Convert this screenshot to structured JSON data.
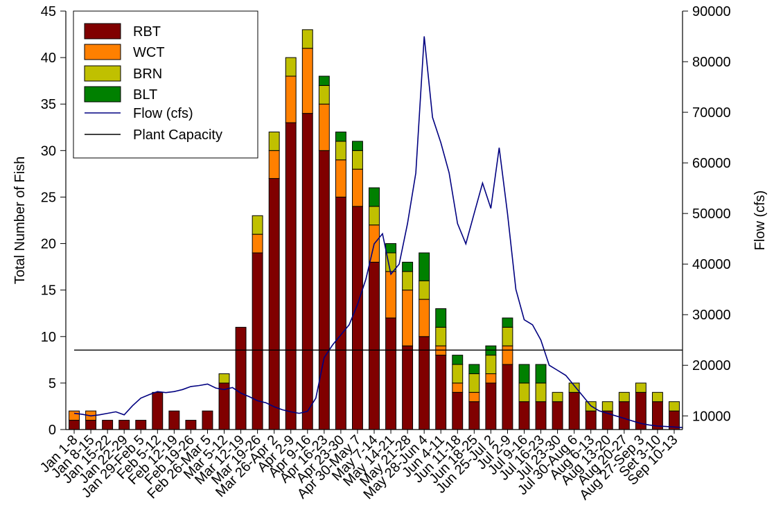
{
  "chart_data": {
    "type": "bar",
    "stacked": true,
    "categories": [
      "Jan 1-8",
      "Jan 8-15",
      "Jan 15-22",
      "Jan 22-29",
      "Jan 29-Feb 5",
      "Feb 5-12",
      "Feb 12-19",
      "Feb 19-26",
      "Feb 26-Mar 5",
      "Mar 5-12",
      "Mar 12-19",
      "Mar 19-26",
      "Mar 26-Apr 2",
      "Apr 2-9",
      "Apr 9-16",
      "Apr 16-23",
      "Apr 23-30",
      "Apr 30-May 7",
      "May 7-14",
      "May 14-21",
      "May 21-28",
      "May 28-Jun 4",
      "Jun 4-11",
      "Jun 11-18",
      "Jun 18-25",
      "Jun 25-Jul 2",
      "Jul 2-9",
      "Jul 9-16",
      "Jul 16-23",
      "Jul 23-30",
      "Jul 30-Aug 6",
      "Aug 6-13",
      "Aug 13-20",
      "Aug 20-27",
      "Aug 27-Sep 3",
      "Set 3-10",
      "Sep 10-13"
    ],
    "series": [
      {
        "name": "RBT",
        "color": "#800000",
        "values": [
          1,
          1,
          1,
          1,
          1,
          4,
          2,
          1,
          2,
          5,
          11,
          19,
          27,
          33,
          34,
          30,
          25,
          24,
          18,
          12,
          9,
          10,
          8,
          4,
          3,
          5,
          7,
          3,
          3,
          3,
          4,
          2,
          2,
          3,
          4,
          3,
          2
        ]
      },
      {
        "name": "WCT",
        "color": "#FF8000",
        "values": [
          1,
          1,
          0,
          0,
          0,
          0,
          0,
          0,
          0,
          0,
          0,
          2,
          3,
          5,
          7,
          5,
          4,
          4,
          4,
          5,
          6,
          4,
          1,
          1,
          1,
          1,
          2,
          0,
          0,
          0,
          0,
          0,
          0,
          0,
          0,
          0,
          0
        ]
      },
      {
        "name": "BRN",
        "color": "#C0C000",
        "values": [
          0,
          0,
          0,
          0,
          0,
          0,
          0,
          0,
          0,
          1,
          0,
          2,
          2,
          2,
          2,
          2,
          2,
          2,
          2,
          2,
          2,
          2,
          2,
          2,
          2,
          2,
          2,
          2,
          2,
          1,
          1,
          1,
          1,
          1,
          1,
          1,
          1
        ]
      },
      {
        "name": "BLT",
        "color": "#008000",
        "values": [
          0,
          0,
          0,
          0,
          0,
          0,
          0,
          0,
          0,
          0,
          0,
          0,
          0,
          0,
          0,
          1,
          1,
          1,
          2,
          1,
          1,
          3,
          2,
          1,
          1,
          1,
          1,
          2,
          2,
          0,
          0,
          0,
          0,
          0,
          0,
          0,
          0
        ]
      }
    ],
    "lines": [
      {
        "name": "Flow (cfs)",
        "color": "#000080",
        "axis": "right",
        "x": [
          0,
          0.5,
          1,
          1.5,
          2,
          2.5,
          3,
          3.5,
          4,
          4.5,
          5,
          5.5,
          6,
          6.5,
          7,
          7.5,
          8,
          8.5,
          9,
          9.5,
          10,
          10.5,
          11,
          11.5,
          12,
          12.5,
          13,
          13.5,
          14,
          14.5,
          15,
          15.5,
          16,
          16.5,
          17,
          17.5,
          18,
          18.5,
          19,
          19.5,
          20,
          20.5,
          21,
          21.5,
          22,
          22.5,
          23,
          23.5,
          24,
          24.5,
          25,
          25.5,
          26,
          26.5,
          27,
          27.5,
          28,
          28.5,
          29,
          29.5,
          30,
          30.5,
          31,
          31.5,
          32,
          32.5,
          33,
          33.5,
          34,
          34.5,
          35,
          35.5,
          36,
          36.5
        ],
        "y": [
          10500,
          10300,
          10000,
          10200,
          10500,
          10800,
          10200,
          12000,
          13500,
          14200,
          14800,
          14600,
          14800,
          15200,
          15800,
          16000,
          16300,
          15500,
          15200,
          15600,
          14500,
          13800,
          13000,
          12600,
          11800,
          11200,
          10800,
          10500,
          10900,
          13500,
          21500,
          24000,
          26000,
          28000,
          32000,
          37000,
          44000,
          46000,
          38000,
          40000,
          48000,
          58000,
          85000,
          69000,
          64000,
          58000,
          48000,
          44000,
          50000,
          56000,
          51000,
          63000,
          50000,
          35000,
          29000,
          28000,
          25000,
          20000,
          19000,
          18000,
          16000,
          14000,
          12000,
          11000,
          10500,
          10000,
          9500,
          9000,
          8500,
          8200,
          8000,
          7900,
          7800,
          7700
        ]
      },
      {
        "name": "Plant Capacity",
        "color": "#000000",
        "axis": "right",
        "x": [
          0,
          36.5
        ],
        "y": [
          23000,
          23000
        ]
      }
    ],
    "ylabel": "Total Number of Fish",
    "ylim": [
      0,
      45
    ],
    "yticks": [
      0,
      5,
      10,
      15,
      20,
      25,
      30,
      35,
      40,
      45
    ],
    "y2label": "Flow (cfs)",
    "y2lim": [
      7300,
      90000
    ],
    "y2ticks": [
      10000,
      20000,
      30000,
      40000,
      50000,
      60000,
      70000,
      80000,
      90000
    ],
    "legend_position": "top-left"
  }
}
